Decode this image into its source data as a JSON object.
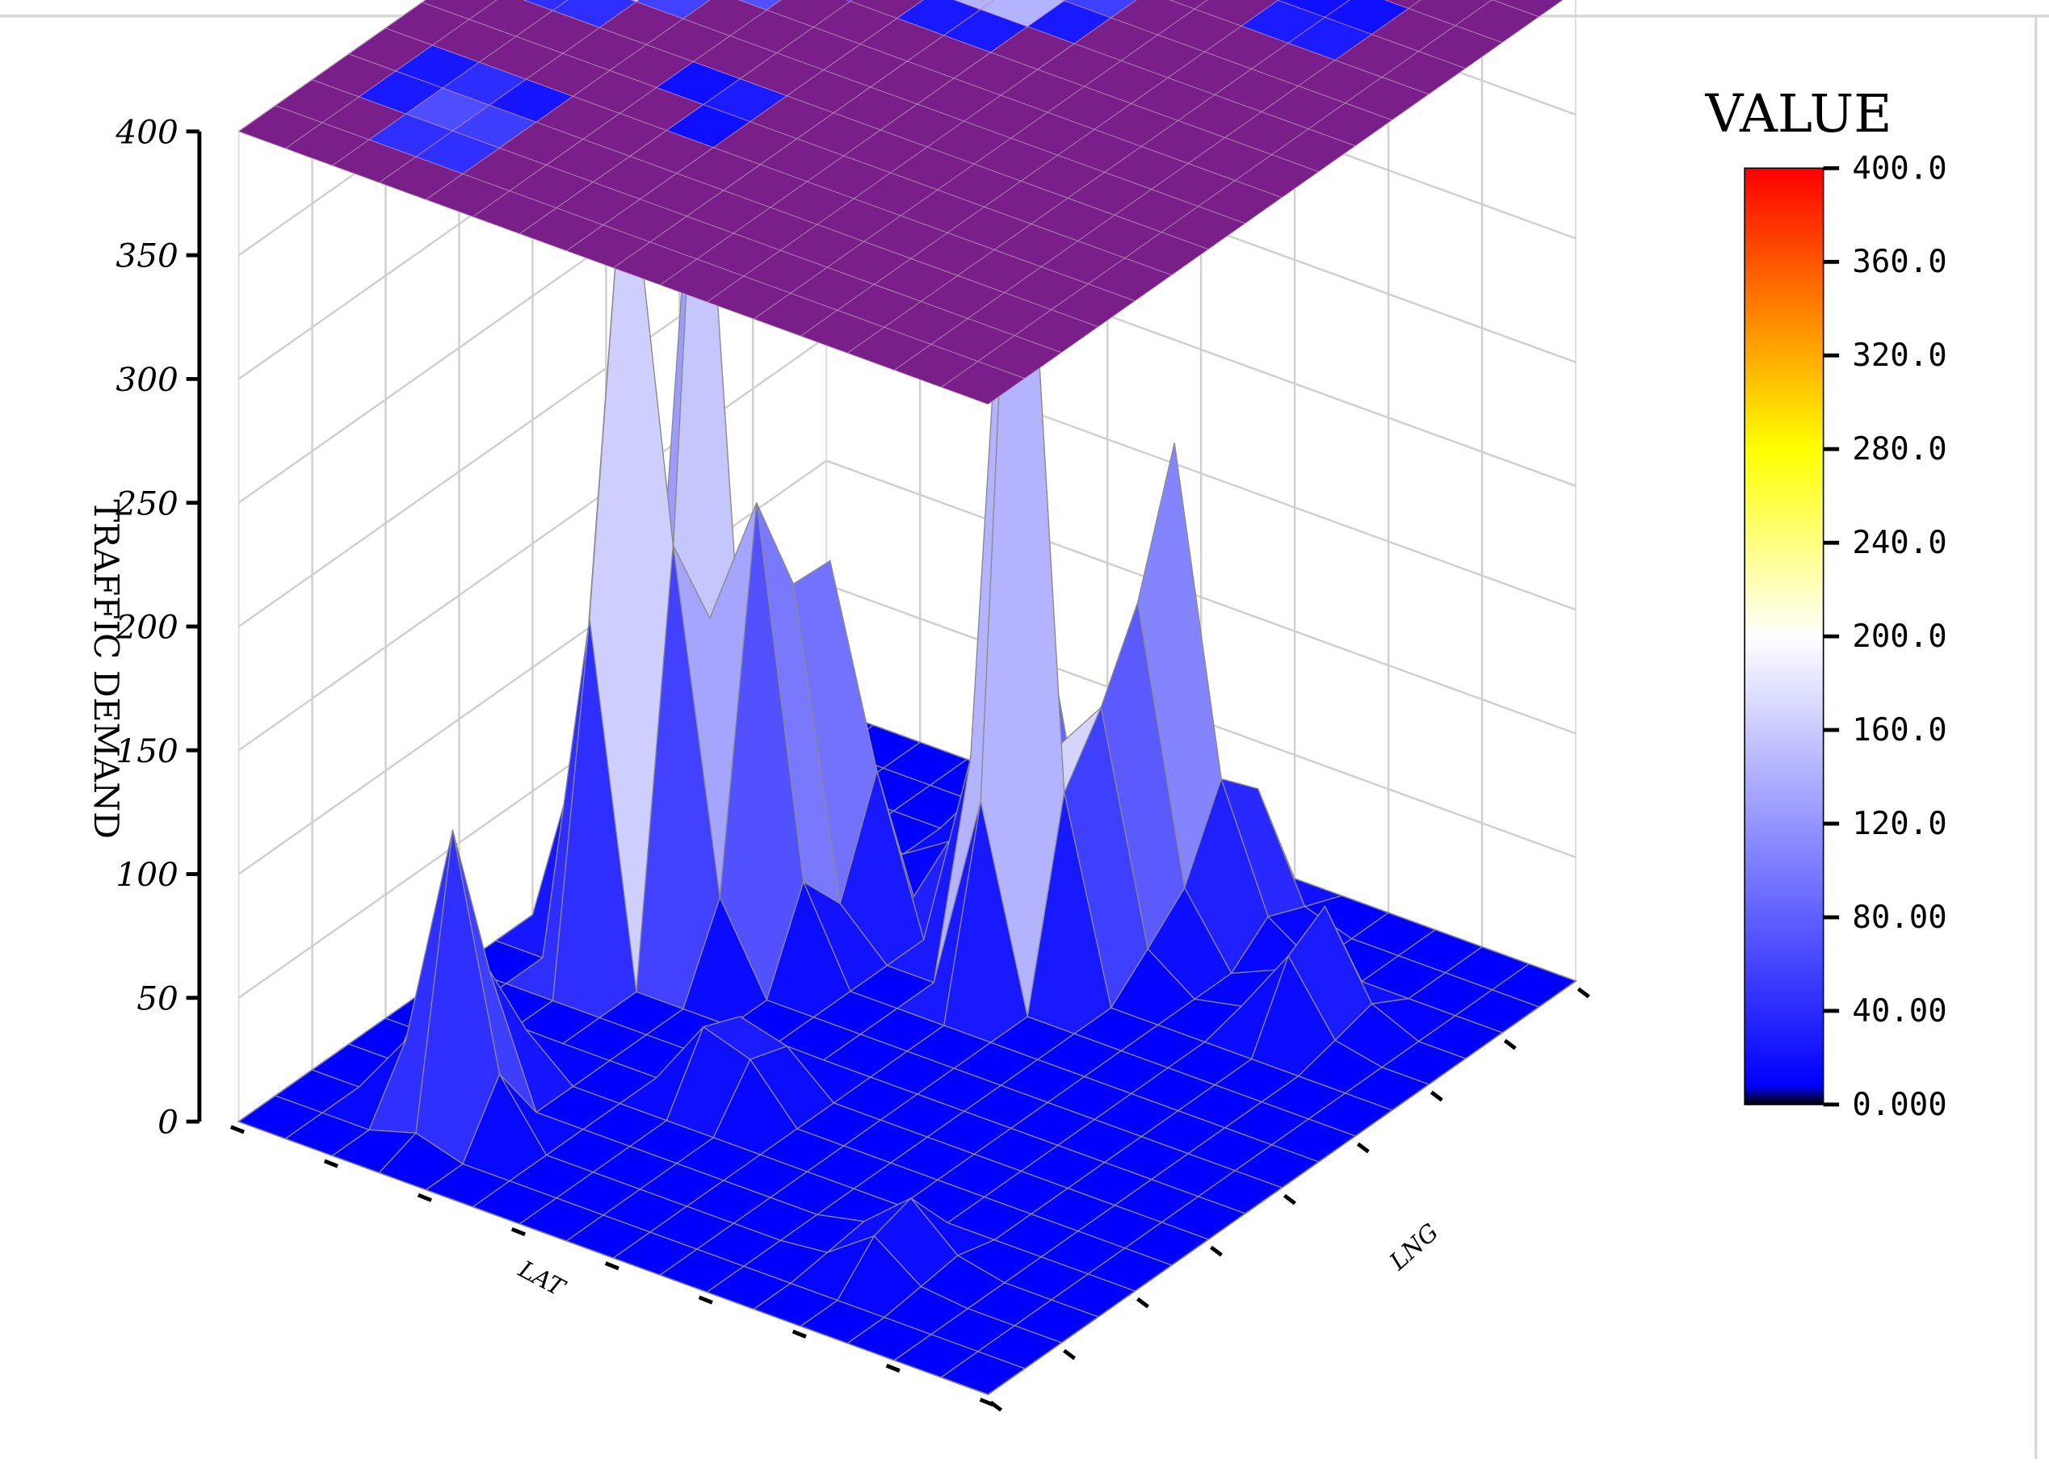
{
  "chart_data": {
    "type": "surface3d",
    "title": "",
    "xlabel": "LAT",
    "ylabel": "LNG",
    "zlabel": "TRAFFIC  DEMAND",
    "zlim": [
      0,
      400
    ],
    "z_ticks": [
      "0",
      "50",
      "100",
      "150",
      "200",
      "250",
      "300",
      "350",
      "400"
    ],
    "grid": true,
    "projected_contour_map_on_top": true,
    "colorbar": {
      "title": "VALUE",
      "range": [
        0,
        400
      ],
      "ticks": [
        "0.000",
        "40.00",
        "80.00",
        "120.0",
        "160.0",
        "200.0",
        "240.0",
        "280.0",
        "320.0",
        "360.0",
        "400.0"
      ],
      "colors": [
        "#000000",
        "#0000ff",
        "#ffffff",
        "#ffff00",
        "#ff0000"
      ],
      "position": "right"
    },
    "peaks": [
      {
        "lat_index": 3.0,
        "lng_index": 2.2,
        "value": 140
      },
      {
        "lat_index": 2.4,
        "lng_index": 3.2,
        "value": 80
      },
      {
        "lat_index": 2.0,
        "lng_index": 7.8,
        "value": 400
      },
      {
        "lat_index": 3.0,
        "lng_index": 8.4,
        "value": 250
      },
      {
        "lat_index": 2.0,
        "lng_index": 10.0,
        "value": 350
      },
      {
        "lat_index": 4.0,
        "lng_index": 9.4,
        "value": 270
      },
      {
        "lat_index": 4.2,
        "lng_index": 10.8,
        "value": 180
      },
      {
        "lat_index": 8.0,
        "lng_index": 11.0,
        "value": 400
      },
      {
        "lat_index": 7.0,
        "lng_index": 12.2,
        "value": 200
      },
      {
        "lat_index": 9.0,
        "lng_index": 12.6,
        "value": 200
      },
      {
        "lat_index": 6.0,
        "lng_index": 13.6,
        "value": 180
      },
      {
        "lat_index": 9.0,
        "lng_index": 14.0,
        "value": 190
      },
      {
        "lat_index": 8.0,
        "lng_index": 14.6,
        "value": 150
      },
      {
        "lat_index": 10.0,
        "lng_index": 14.4,
        "value": 90
      },
      {
        "lat_index": 13.0,
        "lng_index": 12.6,
        "value": 60
      },
      {
        "lat_index": 6.4,
        "lng_index": 5.4,
        "value": 50
      },
      {
        "lat_index": 12.0,
        "lng_index": 2.6,
        "value": 30
      }
    ]
  }
}
